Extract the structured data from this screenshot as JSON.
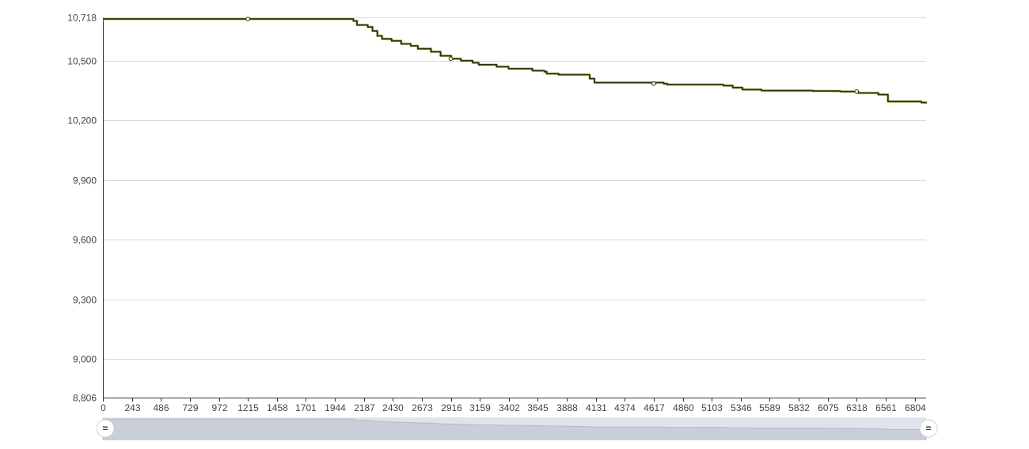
{
  "chart_data": {
    "type": "line",
    "title": "",
    "xlabel": "",
    "ylabel": "",
    "xlim": [
      0,
      6900
    ],
    "ylim": [
      8806,
      10718
    ],
    "y_ticks": [
      {
        "value": 10718,
        "label": "10,718"
      },
      {
        "value": 10500,
        "label": "10,500"
      },
      {
        "value": 10200,
        "label": "10,200"
      },
      {
        "value": 9900,
        "label": "9,900"
      },
      {
        "value": 9600,
        "label": "9,600"
      },
      {
        "value": 9300,
        "label": "9,300"
      },
      {
        "value": 9000,
        "label": "9,000"
      },
      {
        "value": 8806,
        "label": "8,806"
      }
    ],
    "x_ticks": [
      {
        "value": 0,
        "label": "0"
      },
      {
        "value": 243,
        "label": "243"
      },
      {
        "value": 486,
        "label": "486"
      },
      {
        "value": 729,
        "label": "729"
      },
      {
        "value": 972,
        "label": "972"
      },
      {
        "value": 1215,
        "label": "1215"
      },
      {
        "value": 1458,
        "label": "1458"
      },
      {
        "value": 1701,
        "label": "1701"
      },
      {
        "value": 1944,
        "label": "1944"
      },
      {
        "value": 2187,
        "label": "2187"
      },
      {
        "value": 2430,
        "label": "2430"
      },
      {
        "value": 2673,
        "label": "2673"
      },
      {
        "value": 2916,
        "label": "2916"
      },
      {
        "value": 3159,
        "label": "3159"
      },
      {
        "value": 3402,
        "label": "3402"
      },
      {
        "value": 3645,
        "label": "3645"
      },
      {
        "value": 3888,
        "label": "3888"
      },
      {
        "value": 4131,
        "label": "4131"
      },
      {
        "value": 4374,
        "label": "4374"
      },
      {
        "value": 4617,
        "label": "4617"
      },
      {
        "value": 4860,
        "label": "4860"
      },
      {
        "value": 5103,
        "label": "5103"
      },
      {
        "value": 5346,
        "label": "5346"
      },
      {
        "value": 5589,
        "label": "5589"
      },
      {
        "value": 5832,
        "label": "5832"
      },
      {
        "value": 6075,
        "label": "6075"
      },
      {
        "value": 6318,
        "label": "6318"
      },
      {
        "value": 6561,
        "label": "6561"
      },
      {
        "value": 6804,
        "label": "6804"
      }
    ],
    "grid": true,
    "legend": "none",
    "series": [
      {
        "color": "#2b3300",
        "step": true,
        "points": [
          [
            0,
            10710
          ],
          [
            2070,
            10710
          ],
          [
            2100,
            10700
          ],
          [
            2130,
            10680
          ],
          [
            2220,
            10670
          ],
          [
            2260,
            10650
          ],
          [
            2300,
            10625
          ],
          [
            2340,
            10610
          ],
          [
            2420,
            10600
          ],
          [
            2500,
            10585
          ],
          [
            2580,
            10575
          ],
          [
            2640,
            10560
          ],
          [
            2750,
            10545
          ],
          [
            2830,
            10525
          ],
          [
            2920,
            10510
          ],
          [
            3000,
            10500
          ],
          [
            3100,
            10490
          ],
          [
            3150,
            10480
          ],
          [
            3300,
            10470
          ],
          [
            3400,
            10460
          ],
          [
            3600,
            10450
          ],
          [
            3700,
            10445
          ],
          [
            3720,
            10435
          ],
          [
            3820,
            10430
          ],
          [
            4080,
            10410
          ],
          [
            4120,
            10390
          ],
          [
            4700,
            10385
          ],
          [
            4730,
            10380
          ],
          [
            5200,
            10375
          ],
          [
            5280,
            10365
          ],
          [
            5360,
            10355
          ],
          [
            5520,
            10350
          ],
          [
            5950,
            10348
          ],
          [
            6180,
            10345
          ],
          [
            6330,
            10338
          ],
          [
            6500,
            10330
          ],
          [
            6580,
            10295
          ],
          [
            6860,
            10290
          ],
          [
            6900,
            10285
          ]
        ],
        "markers": [
          [
            1215,
            10710
          ],
          [
            2916,
            10510
          ],
          [
            4617,
            10385
          ],
          [
            6318,
            10345
          ]
        ]
      }
    ],
    "navigator": {
      "handle_left_label": "=",
      "handle_right_label": "="
    }
  }
}
